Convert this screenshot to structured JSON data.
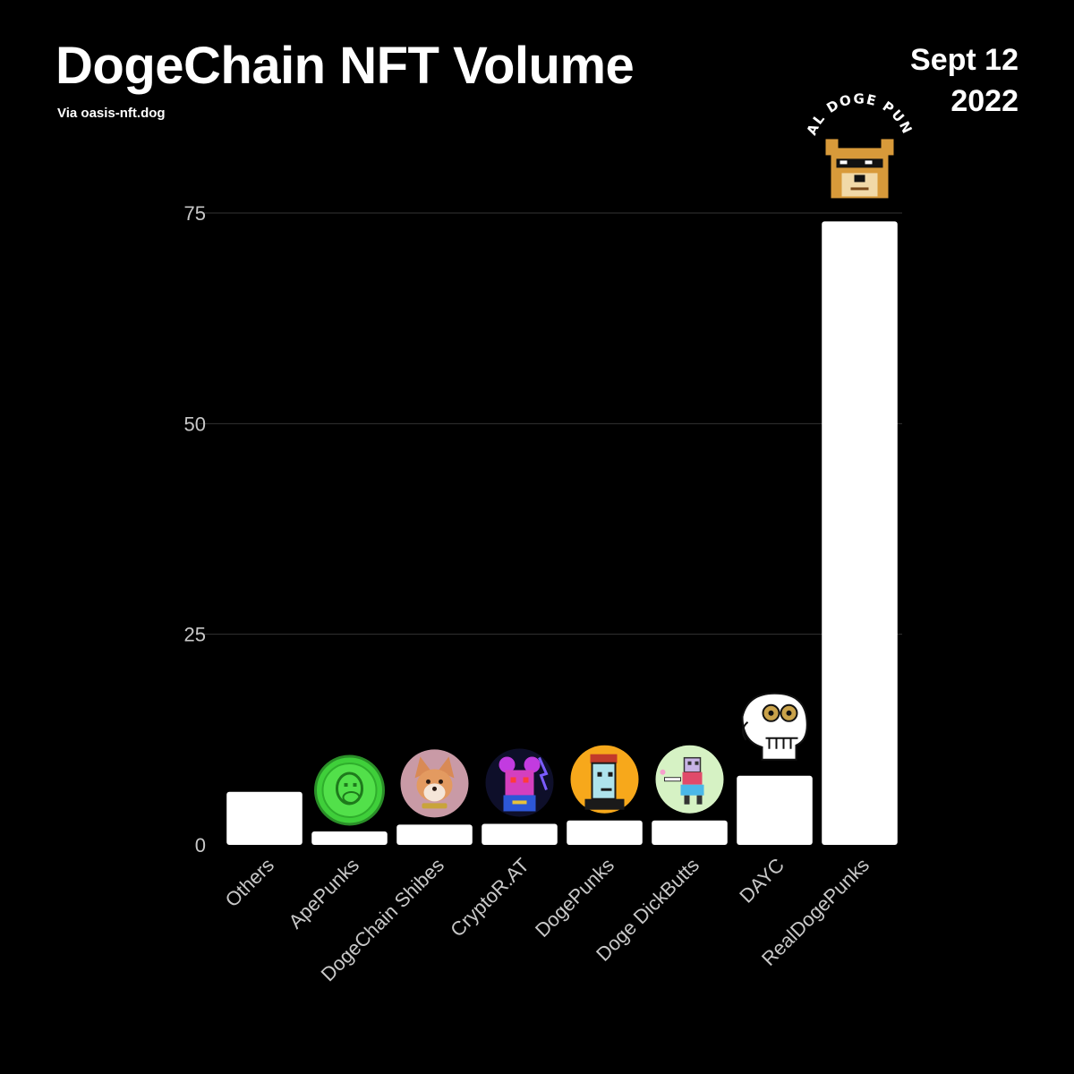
{
  "header": {
    "title": "DogeChain NFT Volume",
    "source": "Via oasis-nft.dog",
    "date_line1": "Sept 12",
    "date_line2": "2022"
  },
  "chart_data": {
    "type": "bar",
    "title": "DogeChain NFT Volume",
    "categories": [
      "Others",
      "ApePunks",
      "DogeChain Shibes",
      "CryptoR.AT",
      "DogePunks",
      "Doge DickButts",
      "DAYC",
      "RealDogePunks"
    ],
    "values": [
      6.3,
      1.6,
      2.4,
      2.5,
      2.9,
      2.9,
      8.2,
      74
    ],
    "icons": [
      "",
      "ape-punk-coin-icon",
      "shiba-dog-icon",
      "crypto-rat-icon",
      "doge-punk-icon",
      "doge-dickbutt-icon",
      "dayc-skull-icon",
      "real-doge-punks-logo-icon"
    ],
    "icon_texts": {
      "real_doge_punks": "REAL DOGE PUNKS"
    },
    "ylim": [
      0,
      75
    ],
    "yticks": [
      0,
      25,
      50,
      75
    ],
    "grid": true,
    "xlabel": "",
    "ylabel": "",
    "bar_color": "#ffffff",
    "background": "#000000"
  }
}
